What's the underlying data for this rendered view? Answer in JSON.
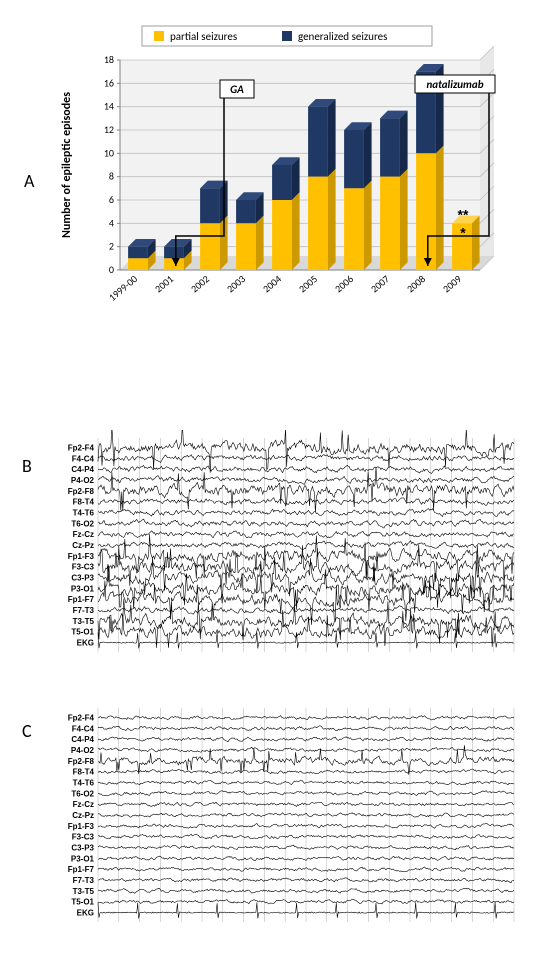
{
  "panelA": {
    "label": "A",
    "type": "stacked-bar",
    "legend": {
      "partial": "partial seizures",
      "generalized": "generalized seizures"
    },
    "ylabel": "Number of epileptic  episodes",
    "categories": [
      "1999-00",
      "2001",
      "2002",
      "2003",
      "2004",
      "2005",
      "2006",
      "2007",
      "2008",
      "2009"
    ],
    "partial_values": [
      1,
      1,
      4,
      4,
      6,
      8,
      7,
      8,
      10,
      4
    ],
    "generalized_values": [
      1,
      1,
      3,
      2,
      3,
      6,
      5,
      5,
      7,
      0
    ],
    "bar_colors": {
      "partial": "#ffc000",
      "generalized": "#1f3864"
    },
    "plot_background": "#ffffff",
    "plot_wall_color": "#f2f2f2",
    "gridline_color": "#bfbfbf",
    "axis_line_color": "#808080",
    "ylim": [
      0,
      18
    ],
    "ytick_step": 2,
    "bar_width": 0.55,
    "title_fontsize": 10,
    "label_fontsize": 12,
    "tick_fontsize": 10,
    "annotations": [
      {
        "text": "GA",
        "box": true,
        "italic": true,
        "arrowTo": "between 2001-2002 baseline"
      },
      {
        "text": "natalizumab",
        "box": true,
        "italic": true,
        "arrowTo": "between 2008-2009 baseline"
      }
    ],
    "markers": {
      "2009_partial": "*",
      "2009_total": "**"
    }
  },
  "panelB": {
    "label": "B",
    "type": "eeg-traces",
    "channels": [
      "Fp2-F4",
      "F4-C4",
      "C4-P4",
      "P4-O2",
      "Fp2-F8",
      "F8-T4",
      "T4-T6",
      "T6-O2",
      "Fz-Cz",
      "Cz-Pz",
      "Fp1-F3",
      "F3-C3",
      "C3-P3",
      "P3-O1",
      "Fp1-F7",
      "F7-T3",
      "T3-T5",
      "T5-O1",
      "EKG"
    ],
    "label_fontsize": 8,
    "label_fontweight": "bold",
    "trace_color": "#000000",
    "grid_color": "#b0b0b0",
    "background": "#ffffff",
    "grid_cols": 20,
    "line_width": 0.6
  },
  "panelC": {
    "label": "C",
    "type": "eeg-traces",
    "channels": [
      "Fp2-F4",
      "F4-C4",
      "C4-P4",
      "P4-O2",
      "Fp2-F8",
      "F8-T4",
      "T4-T6",
      "T6-O2",
      "Fz-Cz",
      "Cz-Pz",
      "Fp1-F3",
      "F3-C3",
      "C3-P3",
      "P3-O1",
      "Fp1-F7",
      "F7-T3",
      "T3-T5",
      "T5-O1",
      "EKG"
    ],
    "label_fontsize": 8,
    "label_fontweight": "bold",
    "trace_color": "#000000",
    "grid_color": "#b0b0b0",
    "background": "#ffffff",
    "grid_cols": 20,
    "line_width": 0.6
  }
}
